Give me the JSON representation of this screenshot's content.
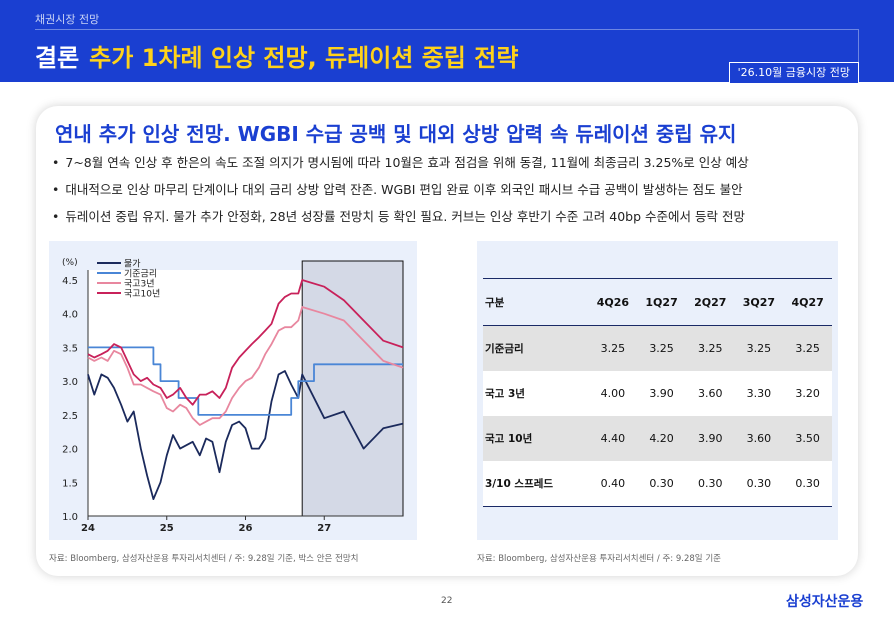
{
  "header": {
    "section_label": "채권시장 전망",
    "keyword": "결론",
    "title": "추가 1차례 인상 전망, 듀레이션 중립 전략",
    "date_tag": "'26.10월 금융시장 전망"
  },
  "card": {
    "title": "연내 추가 인상 전망. WGBI 수급 공백 및 대외 상방 압력 속 듀레이션 중립 유지",
    "bullets": [
      "7~8월 연속 인상 후 한은의 속도 조절 의지가 명시됨에 따라 10월은 효과 점검을 위해 동결, 11월에 최종금리 3.25%로 인상 예상",
      "대내적으로 인상 마무리 단계이나 대외 금리 상방 압력 잔존. WGBI 편입 완료 이후 외국인 패시브 수급 공백이 발생하는 점도 불안",
      "듀레이션 중립 유지. 물가 추가 안정화, 28년 성장률 전망치 등 확인 필요. 커브는 인상 후반기 수준 고려 40bp 수준에서 등락 전망"
    ]
  },
  "chart_data": {
    "type": "line",
    "ylabel": "(%)",
    "ylim": [
      1.0,
      4.5
    ],
    "yticks": [
      "4.5",
      "4.0",
      "3.5",
      "3.0",
      "2.5",
      "2.0",
      "1.5",
      "1.0"
    ],
    "xlim": [
      2024.0,
      2028.0
    ],
    "xticks": [
      {
        "x": 2024.0,
        "label": "24"
      },
      {
        "x": 2025.0,
        "label": "25"
      },
      {
        "x": 2026.0,
        "label": "26"
      },
      {
        "x": 2027.0,
        "label": "27"
      }
    ],
    "forecast_box": [
      2026.72,
      2028.0
    ],
    "grid": false,
    "legend": "top-left",
    "series": [
      {
        "name": "물가",
        "color": "#1b2a5c",
        "points": [
          [
            2024.0,
            3.1
          ],
          [
            2024.08,
            2.8
          ],
          [
            2024.17,
            3.1
          ],
          [
            2024.25,
            3.05
          ],
          [
            2024.33,
            2.9
          ],
          [
            2024.42,
            2.65
          ],
          [
            2024.5,
            2.4
          ],
          [
            2024.58,
            2.55
          ],
          [
            2024.67,
            2.0
          ],
          [
            2024.75,
            1.6
          ],
          [
            2024.83,
            1.25
          ],
          [
            2024.92,
            1.5
          ],
          [
            2025.0,
            1.9
          ],
          [
            2025.08,
            2.2
          ],
          [
            2025.17,
            2.0
          ],
          [
            2025.25,
            2.05
          ],
          [
            2025.33,
            2.1
          ],
          [
            2025.42,
            1.9
          ],
          [
            2025.5,
            2.15
          ],
          [
            2025.58,
            2.1
          ],
          [
            2025.67,
            1.65
          ],
          [
            2025.75,
            2.1
          ],
          [
            2025.83,
            2.35
          ],
          [
            2025.92,
            2.4
          ],
          [
            2026.0,
            2.3
          ],
          [
            2026.08,
            2.0
          ],
          [
            2026.17,
            2.0
          ],
          [
            2026.25,
            2.15
          ],
          [
            2026.33,
            2.7
          ],
          [
            2026.42,
            3.1
          ],
          [
            2026.5,
            3.15
          ],
          [
            2026.58,
            2.95
          ],
          [
            2026.67,
            2.75
          ],
          [
            2026.72,
            3.1
          ],
          [
            2027.0,
            2.45
          ],
          [
            2027.25,
            2.55
          ],
          [
            2027.5,
            2.0
          ],
          [
            2027.75,
            2.3
          ],
          [
            2028.0,
            2.37
          ]
        ]
      },
      {
        "name": "기준금리",
        "color": "#4a86d6",
        "points": [
          [
            2024.0,
            3.5
          ],
          [
            2024.83,
            3.5
          ],
          [
            2024.83,
            3.25
          ],
          [
            2024.92,
            3.25
          ],
          [
            2024.92,
            3.0
          ],
          [
            2025.15,
            3.0
          ],
          [
            2025.15,
            2.75
          ],
          [
            2025.4,
            2.75
          ],
          [
            2025.4,
            2.5
          ],
          [
            2026.58,
            2.5
          ],
          [
            2026.58,
            2.75
          ],
          [
            2026.67,
            2.75
          ],
          [
            2026.67,
            3.0
          ],
          [
            2026.87,
            3.0
          ],
          [
            2026.87,
            3.25
          ],
          [
            2028.0,
            3.25
          ]
        ]
      },
      {
        "name": "국고3년",
        "color": "#e8879f",
        "points": [
          [
            2024.0,
            3.35
          ],
          [
            2024.08,
            3.3
          ],
          [
            2024.17,
            3.35
          ],
          [
            2024.25,
            3.3
          ],
          [
            2024.33,
            3.45
          ],
          [
            2024.42,
            3.4
          ],
          [
            2024.5,
            3.2
          ],
          [
            2024.58,
            2.95
          ],
          [
            2024.67,
            2.95
          ],
          [
            2024.75,
            2.9
          ],
          [
            2024.83,
            2.85
          ],
          [
            2024.92,
            2.8
          ],
          [
            2025.0,
            2.6
          ],
          [
            2025.08,
            2.55
          ],
          [
            2025.17,
            2.65
          ],
          [
            2025.25,
            2.6
          ],
          [
            2025.33,
            2.45
          ],
          [
            2025.42,
            2.35
          ],
          [
            2025.5,
            2.4
          ],
          [
            2025.58,
            2.45
          ],
          [
            2025.67,
            2.45
          ],
          [
            2025.75,
            2.55
          ],
          [
            2025.83,
            2.75
          ],
          [
            2025.92,
            2.9
          ],
          [
            2026.0,
            3.0
          ],
          [
            2026.08,
            3.05
          ],
          [
            2026.17,
            3.2
          ],
          [
            2026.25,
            3.4
          ],
          [
            2026.33,
            3.55
          ],
          [
            2026.42,
            3.75
          ],
          [
            2026.5,
            3.8
          ],
          [
            2026.58,
            3.8
          ],
          [
            2026.67,
            3.9
          ],
          [
            2026.72,
            4.1
          ],
          [
            2027.0,
            4.0
          ],
          [
            2027.25,
            3.9
          ],
          [
            2027.5,
            3.6
          ],
          [
            2027.75,
            3.3
          ],
          [
            2028.0,
            3.2
          ]
        ]
      },
      {
        "name": "국고10년",
        "color": "#c8215a",
        "points": [
          [
            2024.0,
            3.4
          ],
          [
            2024.08,
            3.35
          ],
          [
            2024.17,
            3.4
          ],
          [
            2024.25,
            3.45
          ],
          [
            2024.33,
            3.55
          ],
          [
            2024.42,
            3.5
          ],
          [
            2024.5,
            3.3
          ],
          [
            2024.58,
            3.1
          ],
          [
            2024.67,
            3.0
          ],
          [
            2024.75,
            3.05
          ],
          [
            2024.83,
            2.95
          ],
          [
            2024.92,
            2.9
          ],
          [
            2025.0,
            2.75
          ],
          [
            2025.08,
            2.8
          ],
          [
            2025.17,
            2.9
          ],
          [
            2025.25,
            2.75
          ],
          [
            2025.33,
            2.65
          ],
          [
            2025.42,
            2.8
          ],
          [
            2025.5,
            2.8
          ],
          [
            2025.58,
            2.85
          ],
          [
            2025.67,
            2.75
          ],
          [
            2025.75,
            2.9
          ],
          [
            2025.83,
            3.2
          ],
          [
            2025.92,
            3.35
          ],
          [
            2026.0,
            3.45
          ],
          [
            2026.08,
            3.55
          ],
          [
            2026.17,
            3.65
          ],
          [
            2026.25,
            3.75
          ],
          [
            2026.33,
            3.85
          ],
          [
            2026.42,
            4.15
          ],
          [
            2026.5,
            4.25
          ],
          [
            2026.58,
            4.3
          ],
          [
            2026.67,
            4.3
          ],
          [
            2026.72,
            4.5
          ],
          [
            2027.0,
            4.4
          ],
          [
            2027.25,
            4.2
          ],
          [
            2027.5,
            3.9
          ],
          [
            2027.75,
            3.6
          ],
          [
            2028.0,
            3.5
          ]
        ]
      }
    ]
  },
  "table": {
    "header": [
      "구분",
      "4Q26",
      "1Q27",
      "2Q27",
      "3Q27",
      "4Q27"
    ],
    "rows": [
      [
        "기준금리",
        "3.25",
        "3.25",
        "3.25",
        "3.25",
        "3.25"
      ],
      [
        "국고 3년",
        "4.00",
        "3.90",
        "3.60",
        "3.30",
        "3.20"
      ],
      [
        "국고 10년",
        "4.40",
        "4.20",
        "3.90",
        "3.60",
        "3.50"
      ],
      [
        "3/10 스프레드",
        "0.40",
        "0.30",
        "0.30",
        "0.30",
        "0.30"
      ]
    ]
  },
  "source_left": "자료: Bloomberg, 삼성자산운용 투자리서치센터 / 주: 9.28일 기준, 박스 안은 전망치",
  "source_right": "자료: Bloomberg, 삼성자산운용 투자리서치센터 / 주: 9.28일 기준",
  "page_number": "22",
  "logo": "삼성자산운용"
}
